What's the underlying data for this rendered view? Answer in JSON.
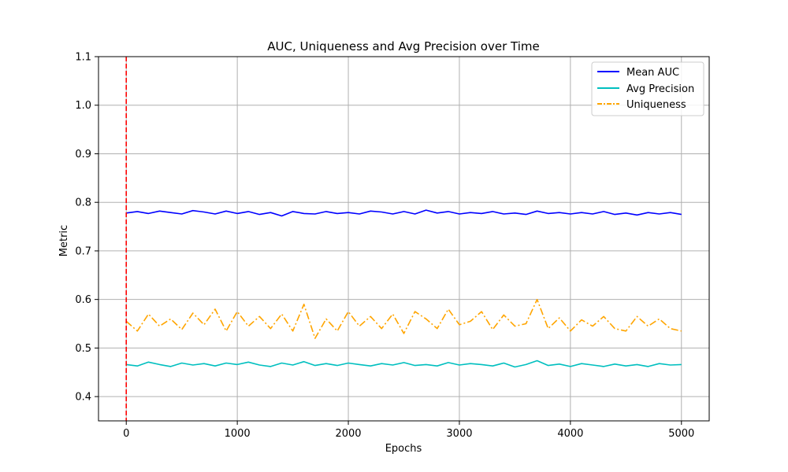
{
  "chart_data": {
    "type": "line",
    "title": "AUC, Uniqueness and Avg Precision over Time",
    "xlabel": "Epochs",
    "ylabel": "Metric",
    "xlim": [
      -250,
      5250
    ],
    "ylim": [
      0.35,
      1.1
    ],
    "x_ticks": [
      0,
      1000,
      2000,
      3000,
      4000,
      5000
    ],
    "y_ticks": [
      0.4,
      0.5,
      0.6,
      0.7,
      0.8,
      0.9,
      1.0,
      1.1
    ],
    "x_tick_labels": [
      "0",
      "1000",
      "2000",
      "3000",
      "4000",
      "5000"
    ],
    "y_tick_labels": [
      "0.4",
      "0.5",
      "0.6",
      "0.7",
      "0.8",
      "0.9",
      "1.0",
      "1.1"
    ],
    "grid": true,
    "legend_position": "top-right",
    "highlight_x_tick_color": "#ff0000",
    "reference_line": {
      "x": 0,
      "color": "#ff0000",
      "style": "dashed"
    },
    "x": [
      0,
      100,
      200,
      300,
      400,
      500,
      600,
      700,
      800,
      900,
      1000,
      1100,
      1200,
      1300,
      1400,
      1500,
      1600,
      1700,
      1800,
      1900,
      2000,
      2100,
      2200,
      2300,
      2400,
      2500,
      2600,
      2700,
      2800,
      2900,
      3000,
      3100,
      3200,
      3300,
      3400,
      3500,
      3600,
      3700,
      3800,
      3900,
      4000,
      4100,
      4200,
      4300,
      4400,
      4500,
      4600,
      4700,
      4800,
      4900,
      5000
    ],
    "series": [
      {
        "name": "Mean AUC",
        "color": "#0000ff",
        "style": "solid",
        "values": [
          0.778,
          0.781,
          0.777,
          0.782,
          0.779,
          0.776,
          0.783,
          0.78,
          0.776,
          0.782,
          0.777,
          0.781,
          0.775,
          0.779,
          0.772,
          0.781,
          0.777,
          0.776,
          0.781,
          0.777,
          0.779,
          0.776,
          0.782,
          0.78,
          0.776,
          0.781,
          0.776,
          0.784,
          0.778,
          0.781,
          0.776,
          0.779,
          0.777,
          0.781,
          0.776,
          0.778,
          0.775,
          0.782,
          0.777,
          0.779,
          0.776,
          0.779,
          0.776,
          0.781,
          0.775,
          0.778,
          0.774,
          0.779,
          0.776,
          0.779,
          0.775
        ]
      },
      {
        "name": "Avg Precision",
        "color": "#00bfbf",
        "style": "solid",
        "values": [
          0.466,
          0.463,
          0.471,
          0.466,
          0.462,
          0.469,
          0.465,
          0.468,
          0.463,
          0.469,
          0.466,
          0.471,
          0.465,
          0.462,
          0.469,
          0.465,
          0.472,
          0.464,
          0.468,
          0.464,
          0.469,
          0.466,
          0.463,
          0.468,
          0.465,
          0.47,
          0.464,
          0.466,
          0.463,
          0.47,
          0.465,
          0.468,
          0.466,
          0.463,
          0.469,
          0.461,
          0.466,
          0.474,
          0.464,
          0.467,
          0.462,
          0.468,
          0.465,
          0.462,
          0.467,
          0.463,
          0.466,
          0.462,
          0.468,
          0.465,
          0.466
        ]
      },
      {
        "name": "Uniqueness",
        "color": "#ffa500",
        "style": "dashdot",
        "values": [
          0.555,
          0.535,
          0.57,
          0.545,
          0.56,
          0.538,
          0.572,
          0.548,
          0.58,
          0.535,
          0.575,
          0.545,
          0.565,
          0.54,
          0.57,
          0.535,
          0.59,
          0.52,
          0.56,
          0.535,
          0.575,
          0.545,
          0.565,
          0.54,
          0.57,
          0.53,
          0.575,
          0.56,
          0.54,
          0.58,
          0.548,
          0.555,
          0.575,
          0.538,
          0.568,
          0.545,
          0.55,
          0.6,
          0.54,
          0.562,
          0.535,
          0.558,
          0.545,
          0.565,
          0.54,
          0.535,
          0.565,
          0.545,
          0.56,
          0.54,
          0.535
        ]
      }
    ]
  }
}
